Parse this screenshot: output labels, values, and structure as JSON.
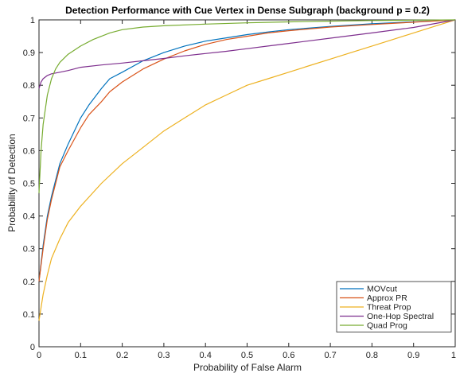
{
  "chart_data": {
    "type": "line",
    "title": "Detection Performance with Cue Vertex in Dense Subgraph (background p = 0.2)",
    "xlabel": "Probability of False Alarm",
    "ylabel": "Probability of Detection",
    "xlim": [
      0,
      1
    ],
    "ylim": [
      0,
      1
    ],
    "xticks": [
      "0",
      "0.1",
      "0.2",
      "0.3",
      "0.4",
      "0.5",
      "0.6",
      "0.7",
      "0.8",
      "0.9",
      "1"
    ],
    "yticks": [
      "0",
      "0.1",
      "0.2",
      "0.3",
      "0.4",
      "0.5",
      "0.6",
      "0.7",
      "0.8",
      "0.9",
      "1"
    ],
    "grid": false,
    "legend_position": "bottom-right",
    "series": [
      {
        "name": "MOVcut",
        "color": "#0072BD",
        "x": [
          0,
          0.01,
          0.02,
          0.03,
          0.05,
          0.07,
          0.1,
          0.12,
          0.15,
          0.17,
          0.2,
          0.25,
          0.3,
          0.35,
          0.4,
          0.45,
          0.5,
          0.55,
          0.6,
          0.7,
          0.8,
          0.9,
          1.0
        ],
        "y": [
          0.2,
          0.31,
          0.4,
          0.46,
          0.56,
          0.62,
          0.7,
          0.74,
          0.79,
          0.82,
          0.84,
          0.875,
          0.9,
          0.92,
          0.935,
          0.945,
          0.955,
          0.963,
          0.97,
          0.98,
          0.988,
          0.994,
          1.0
        ]
      },
      {
        "name": "Approx PR",
        "color": "#D95319",
        "x": [
          0,
          0.01,
          0.02,
          0.03,
          0.05,
          0.07,
          0.1,
          0.12,
          0.15,
          0.17,
          0.2,
          0.25,
          0.3,
          0.35,
          0.4,
          0.45,
          0.5,
          0.55,
          0.6,
          0.7,
          0.8,
          0.9,
          1.0
        ],
        "y": [
          0.2,
          0.3,
          0.39,
          0.45,
          0.55,
          0.6,
          0.67,
          0.71,
          0.75,
          0.78,
          0.81,
          0.85,
          0.88,
          0.905,
          0.925,
          0.94,
          0.95,
          0.96,
          0.967,
          0.978,
          0.986,
          0.993,
          1.0
        ]
      },
      {
        "name": "Threat Prop",
        "color": "#EDB120",
        "x": [
          0,
          0.01,
          0.02,
          0.03,
          0.05,
          0.07,
          0.1,
          0.15,
          0.2,
          0.25,
          0.3,
          0.35,
          0.4,
          0.45,
          0.5,
          0.55,
          0.6,
          0.65,
          0.7,
          0.75,
          0.8,
          0.85,
          0.9,
          0.95,
          1.0
        ],
        "y": [
          0.08,
          0.16,
          0.22,
          0.27,
          0.33,
          0.38,
          0.43,
          0.5,
          0.56,
          0.61,
          0.66,
          0.7,
          0.74,
          0.77,
          0.8,
          0.82,
          0.84,
          0.86,
          0.88,
          0.9,
          0.92,
          0.94,
          0.96,
          0.98,
          1.0
        ]
      },
      {
        "name": "One-Hop Spectral",
        "color": "#7E2F8E",
        "x": [
          0,
          0.005,
          0.01,
          0.02,
          0.03,
          0.05,
          0.07,
          0.1,
          0.15,
          0.2,
          0.25,
          0.3,
          0.35,
          0.4,
          0.45,
          0.5,
          0.55,
          0.6,
          0.7,
          0.8,
          0.9,
          1.0
        ],
        "y": [
          0.79,
          0.81,
          0.82,
          0.83,
          0.835,
          0.84,
          0.845,
          0.855,
          0.862,
          0.868,
          0.875,
          0.882,
          0.89,
          0.897,
          0.904,
          0.912,
          0.92,
          0.928,
          0.944,
          0.96,
          0.977,
          1.0
        ]
      },
      {
        "name": "Quad Prog",
        "color": "#77AC30",
        "x": [
          0,
          0.005,
          0.01,
          0.02,
          0.03,
          0.04,
          0.05,
          0.07,
          0.1,
          0.13,
          0.17,
          0.2,
          0.25,
          0.3,
          0.4,
          0.5,
          0.6,
          0.7,
          0.8,
          0.9,
          1.0
        ],
        "y": [
          0.47,
          0.6,
          0.68,
          0.77,
          0.82,
          0.85,
          0.87,
          0.895,
          0.92,
          0.94,
          0.96,
          0.97,
          0.978,
          0.982,
          0.987,
          0.991,
          0.994,
          0.996,
          0.998,
          0.999,
          1.0
        ]
      }
    ]
  }
}
